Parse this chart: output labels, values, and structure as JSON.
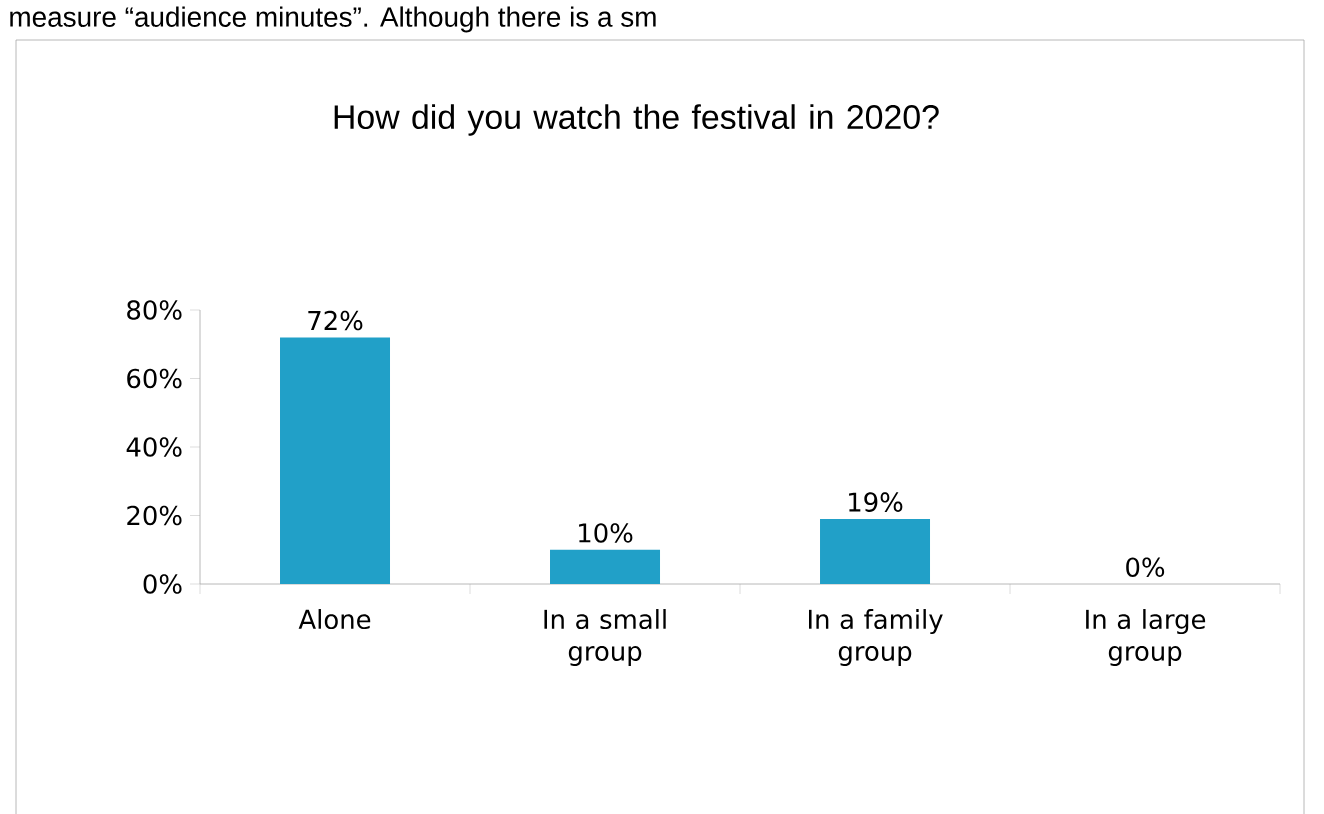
{
  "chart_data": {
    "type": "bar",
    "title": "How did you watch the festival in 2020?",
    "categories": [
      "Alone",
      "In a small group",
      "In a family group",
      "In a large group"
    ],
    "values": [
      72,
      10,
      19,
      0
    ],
    "color": "#21a0c8",
    "value_labels": [
      "72%",
      "10%",
      "19%",
      "0%"
    ],
    "ylim": [
      0,
      80
    ],
    "yticks": [
      {
        "value": 0,
        "label": "0%"
      },
      {
        "value": 20,
        "label": "20%"
      },
      {
        "value": 40,
        "label": "40%"
      },
      {
        "value": 60,
        "label": "60%"
      },
      {
        "value": 80,
        "label": "80%"
      }
    ],
    "annotations": [
      "measure “audience minutes”. Although there is a sm"
    ],
    "grid": false
  }
}
